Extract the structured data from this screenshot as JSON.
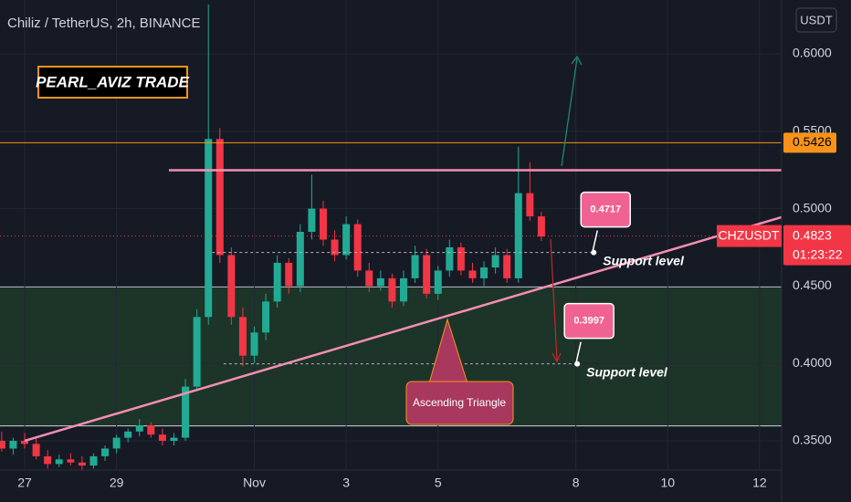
{
  "chart_data": {
    "type": "candlestick",
    "title": "Chiliz / TetherUS, 2h, BINANCE",
    "watermark": "PEARL_AVIZ TRADE",
    "currency": "USDT",
    "symbol_tag": "CHZUSDT",
    "last_price": {
      "value": 0.4823,
      "label": "0.4823"
    },
    "countdown": "01:23:22",
    "up_color": "#22ab94",
    "down_color": "#f23645",
    "xlim": [
      -0.537,
      16.48
    ],
    "ylim": [
      0.3311,
      0.6348
    ],
    "xticks": [
      {
        "value": 0,
        "label": "27"
      },
      {
        "value": 2,
        "label": "29"
      },
      {
        "value": 5,
        "label": "Nov"
      },
      {
        "value": 7,
        "label": "3"
      },
      {
        "value": 9,
        "label": "5"
      },
      {
        "value": 12,
        "label": "8"
      },
      {
        "value": 14,
        "label": "10"
      },
      {
        "value": 16,
        "label": "12"
      }
    ],
    "yticks": [
      {
        "value": 0.35,
        "label": "0.3500"
      },
      {
        "value": 0.4,
        "label": "0.4000"
      },
      {
        "value": 0.45,
        "label": "0.4500"
      },
      {
        "value": 0.5,
        "label": "0.5000"
      },
      {
        "value": 0.55,
        "label": "0.5500"
      },
      {
        "value": 0.6,
        "label": "0.6000"
      }
    ],
    "grid": true,
    "candles": {
      "x": [
        -0.5,
        -0.25,
        0,
        0.25,
        0.5,
        0.75,
        1,
        1.25,
        1.5,
        1.75,
        2,
        2.25,
        2.5,
        2.75,
        3,
        3.25,
        3.5,
        3.75,
        4,
        4.25,
        4.5,
        4.75,
        5,
        5.25,
        5.5,
        5.75,
        6,
        6.25,
        6.5,
        6.75,
        7,
        7.25,
        7.5,
        7.75,
        8,
        8.25,
        8.5,
        8.75,
        9,
        9.25,
        9.5,
        9.75,
        10,
        10.25,
        10.5,
        10.75,
        11,
        11.25
      ],
      "open": [
        0.35,
        0.345,
        0.35,
        0.348,
        0.34,
        0.335,
        0.338,
        0.336,
        0.334,
        0.34,
        0.345,
        0.352,
        0.356,
        0.36,
        0.354,
        0.35,
        0.352,
        0.385,
        0.43,
        0.545,
        0.47,
        0.43,
        0.405,
        0.42,
        0.44,
        0.465,
        0.45,
        0.485,
        0.5,
        0.48,
        0.47,
        0.49,
        0.46,
        0.45,
        0.455,
        0.44,
        0.455,
        0.47,
        0.445,
        0.46,
        0.475,
        0.46,
        0.455,
        0.462,
        0.47,
        0.455,
        0.51,
        0.495
      ],
      "high": [
        0.356,
        0.352,
        0.355,
        0.352,
        0.344,
        0.341,
        0.342,
        0.34,
        0.342,
        0.347,
        0.354,
        0.358,
        0.364,
        0.362,
        0.358,
        0.355,
        0.39,
        0.435,
        0.632,
        0.552,
        0.475,
        0.436,
        0.424,
        0.445,
        0.47,
        0.468,
        0.49,
        0.522,
        0.505,
        0.486,
        0.495,
        0.493,
        0.465,
        0.46,
        0.458,
        0.46,
        0.476,
        0.474,
        0.463,
        0.48,
        0.478,
        0.465,
        0.466,
        0.475,
        0.474,
        0.54,
        0.53,
        0.498
      ],
      "low": [
        0.343,
        0.341,
        0.345,
        0.338,
        0.332,
        0.333,
        0.334,
        0.331,
        0.332,
        0.337,
        0.342,
        0.349,
        0.353,
        0.352,
        0.347,
        0.347,
        0.35,
        0.382,
        0.425,
        0.465,
        0.425,
        0.398,
        0.4,
        0.415,
        0.436,
        0.445,
        0.446,
        0.48,
        0.476,
        0.466,
        0.467,
        0.456,
        0.446,
        0.447,
        0.436,
        0.437,
        0.452,
        0.442,
        0.441,
        0.456,
        0.457,
        0.452,
        0.45,
        0.458,
        0.452,
        0.452,
        0.492,
        0.479
      ],
      "close": [
        0.345,
        0.35,
        0.348,
        0.34,
        0.335,
        0.338,
        0.336,
        0.334,
        0.34,
        0.345,
        0.352,
        0.356,
        0.36,
        0.354,
        0.35,
        0.352,
        0.385,
        0.43,
        0.545,
        0.47,
        0.43,
        0.405,
        0.42,
        0.44,
        0.465,
        0.45,
        0.485,
        0.5,
        0.48,
        0.47,
        0.49,
        0.46,
        0.45,
        0.455,
        0.44,
        0.455,
        0.47,
        0.445,
        0.46,
        0.475,
        0.46,
        0.455,
        0.462,
        0.47,
        0.455,
        0.51,
        0.495,
        0.482
      ]
    },
    "hline": {
      "value": 0.5426,
      "label": "0.5426",
      "color": "#f7931a"
    },
    "resistance": {
      "x": [
        3.14,
        16.48
      ],
      "y": [
        0.5248,
        0.5248
      ],
      "color": "#f48fb1"
    },
    "trendline": {
      "x": [
        0,
        16.48
      ],
      "y": [
        0.35,
        0.4945
      ],
      "color": "#f48fb1"
    },
    "zone": {
      "ylim": [
        0.3596,
        0.4495
      ],
      "color": "#1e3a2a"
    },
    "supports": [
      {
        "value": 0.4717,
        "label": "0.4717",
        "text": "Support level",
        "x": [
          4.08,
          12.39
        ]
      },
      {
        "value": 0.3997,
        "label": "0.3997",
        "text": "Support level",
        "x": [
          4.33,
          12.03
        ]
      }
    ],
    "pattern": "Ascending Triangle"
  }
}
